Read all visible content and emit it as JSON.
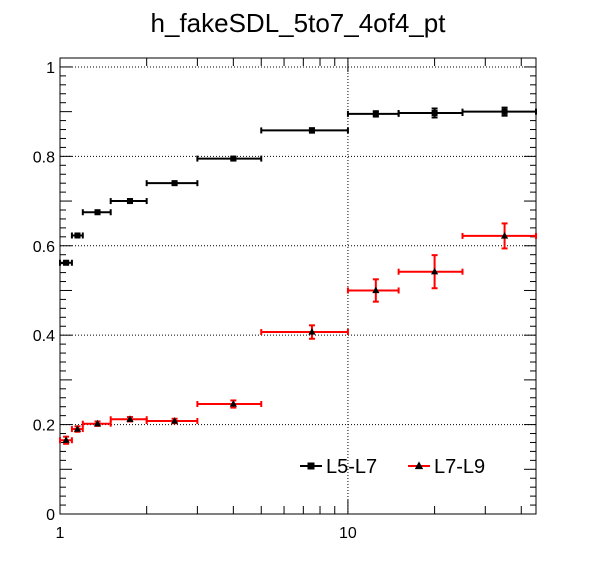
{
  "chart_data": {
    "type": "scatter",
    "title": "h_fakeSDL_5to7_4of4_pt",
    "xlabel": "",
    "ylabel": "",
    "x_scale": "log",
    "xlim": [
      1,
      45
    ],
    "ylim": [
      0,
      1.02
    ],
    "grid": true,
    "legend_position": "bottom-right",
    "x_tick_labels": [
      {
        "value": 1,
        "label": "1"
      },
      {
        "value": 10,
        "label": "10"
      }
    ],
    "y_tick_labels": [
      {
        "value": 0,
        "label": "0"
      },
      {
        "value": 0.2,
        "label": "0.2"
      },
      {
        "value": 0.4,
        "label": "0.4"
      },
      {
        "value": 0.6,
        "label": "0.6"
      },
      {
        "value": 0.8,
        "label": "0.8"
      },
      {
        "value": 1,
        "label": "1"
      }
    ],
    "series": [
      {
        "name": "L5-L7",
        "color": "#000000",
        "marker": "square",
        "points": [
          {
            "x": 1.05,
            "y": 0.562,
            "xlo": 1.0,
            "xhi": 1.1,
            "yerr": 0.004
          },
          {
            "x": 1.15,
            "y": 0.623,
            "xlo": 1.1,
            "xhi": 1.2,
            "yerr": 0.004
          },
          {
            "x": 1.35,
            "y": 0.675,
            "xlo": 1.2,
            "xhi": 1.5,
            "yerr": 0.004
          },
          {
            "x": 1.75,
            "y": 0.7,
            "xlo": 1.5,
            "xhi": 2.0,
            "yerr": 0.004
          },
          {
            "x": 2.5,
            "y": 0.74,
            "xlo": 2.0,
            "xhi": 3.0,
            "yerr": 0.004
          },
          {
            "x": 4.0,
            "y": 0.795,
            "xlo": 3.0,
            "xhi": 5.0,
            "yerr": 0.004
          },
          {
            "x": 7.5,
            "y": 0.858,
            "xlo": 5.0,
            "xhi": 10.0,
            "yerr": 0.005
          },
          {
            "x": 12.5,
            "y": 0.895,
            "xlo": 10.0,
            "xhi": 15.0,
            "yerr": 0.006
          },
          {
            "x": 20.0,
            "y": 0.897,
            "xlo": 15.0,
            "xhi": 25.0,
            "yerr": 0.01
          },
          {
            "x": 35.0,
            "y": 0.9,
            "xlo": 25.0,
            "xhi": 45.0,
            "yerr": 0.009
          }
        ]
      },
      {
        "name": "L7-L9",
        "color": "#ff0000",
        "marker": "triangle",
        "points": [
          {
            "x": 1.05,
            "y": 0.165,
            "xlo": 1.0,
            "xhi": 1.1,
            "yerr": 0.008
          },
          {
            "x": 1.15,
            "y": 0.19,
            "xlo": 1.1,
            "xhi": 1.2,
            "yerr": 0.006
          },
          {
            "x": 1.35,
            "y": 0.202,
            "xlo": 1.2,
            "xhi": 1.5,
            "yerr": 0.005
          },
          {
            "x": 1.75,
            "y": 0.212,
            "xlo": 1.5,
            "xhi": 2.0,
            "yerr": 0.005
          },
          {
            "x": 2.5,
            "y": 0.208,
            "xlo": 2.0,
            "xhi": 3.0,
            "yerr": 0.005
          },
          {
            "x": 4.0,
            "y": 0.246,
            "xlo": 3.0,
            "xhi": 5.0,
            "yerr": 0.008
          },
          {
            "x": 7.5,
            "y": 0.407,
            "xlo": 5.0,
            "xhi": 10.0,
            "yerr": 0.015
          },
          {
            "x": 12.5,
            "y": 0.5,
            "xlo": 10.0,
            "xhi": 15.0,
            "yerr": 0.025
          },
          {
            "x": 20.0,
            "y": 0.542,
            "xlo": 15.0,
            "xhi": 25.0,
            "yerr": 0.037
          },
          {
            "x": 35.0,
            "y": 0.622,
            "xlo": 25.0,
            "xhi": 45.0,
            "yerr": 0.028
          }
        ]
      }
    ]
  }
}
